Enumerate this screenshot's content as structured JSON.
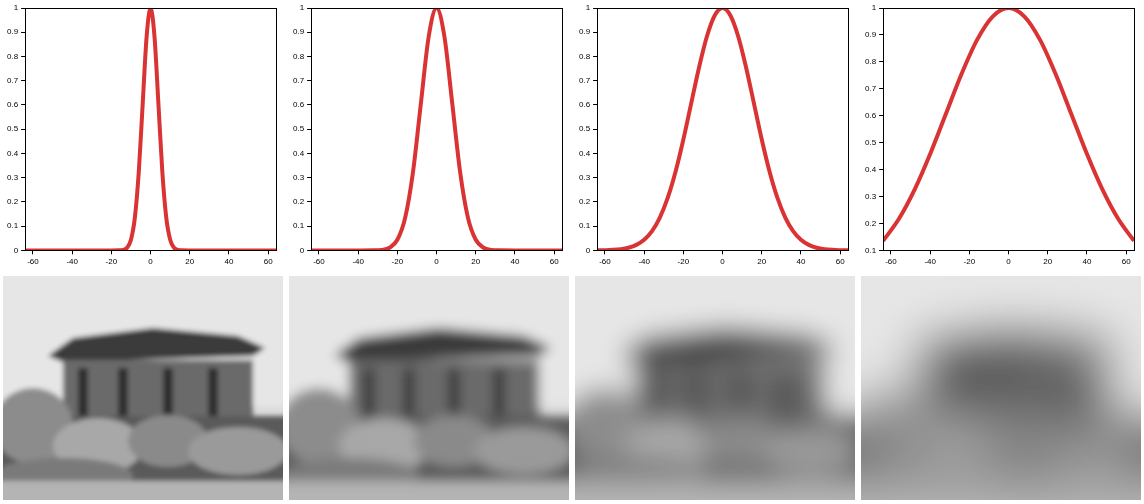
{
  "chart_data": [
    {
      "type": "line",
      "color": "#d93333",
      "grid": false,
      "x": [
        -64,
        -40,
        -20,
        -16,
        -14,
        -12,
        -10,
        -8,
        -6,
        -4,
        -2,
        0,
        2,
        4,
        6,
        8,
        10,
        12,
        14,
        16,
        20,
        40,
        64
      ],
      "values": [
        0,
        0,
        0,
        0.0003,
        0.0022,
        0.0111,
        0.0439,
        0.1353,
        0.3247,
        0.6065,
        0.8825,
        1,
        0.8825,
        0.6065,
        0.3247,
        0.1353,
        0.0439,
        0.0111,
        0.0022,
        0.0003,
        0,
        0,
        0
      ],
      "xlim": [
        -64,
        64
      ],
      "xticks": [
        -60,
        -40,
        -20,
        0,
        20,
        40,
        60
      ],
      "ylim": [
        0,
        1
      ],
      "yticks": [
        0,
        0.1,
        0.2,
        0.3,
        0.4,
        0.5,
        0.6,
        0.7,
        0.8,
        0.9,
        1
      ]
    },
    {
      "type": "line",
      "color": "#d93333",
      "grid": false,
      "x": [
        -64,
        -48,
        -40,
        -32,
        -28,
        -24,
        -20,
        -16,
        -12,
        -8,
        -4,
        0,
        4,
        8,
        12,
        16,
        20,
        24,
        28,
        32,
        40,
        48,
        64
      ],
      "values": [
        0,
        0,
        0,
        0.0003,
        0.0022,
        0.0111,
        0.0439,
        0.1353,
        0.3247,
        0.6065,
        0.8825,
        1,
        0.8825,
        0.6065,
        0.3247,
        0.1353,
        0.0439,
        0.0111,
        0.0022,
        0.0003,
        0,
        0,
        0
      ],
      "xlim": [
        -64,
        64
      ],
      "xticks": [
        -60,
        -40,
        -20,
        0,
        20,
        40,
        60
      ],
      "ylim": [
        0,
        1
      ],
      "yticks": [
        0,
        0.1,
        0.2,
        0.3,
        0.4,
        0.5,
        0.6,
        0.7,
        0.8,
        0.9,
        1
      ]
    },
    {
      "type": "line",
      "color": "#d93333",
      "grid": false,
      "x": [
        -64,
        -60,
        -56,
        -52,
        -48,
        -44,
        -40,
        -36,
        -32,
        -28,
        -24,
        -20,
        -16,
        -12,
        -8,
        -4,
        0,
        4,
        8,
        12,
        16,
        20,
        24,
        28,
        32,
        36,
        40,
        44,
        48,
        52,
        56,
        60,
        64
      ],
      "values": [
        0.0003,
        0.0009,
        0.0022,
        0.0051,
        0.0111,
        0.0228,
        0.0439,
        0.0796,
        0.1353,
        0.2163,
        0.3247,
        0.4578,
        0.6065,
        0.7548,
        0.8825,
        0.9692,
        1,
        0.9692,
        0.8825,
        0.7548,
        0.6065,
        0.4578,
        0.3247,
        0.2163,
        0.1353,
        0.0796,
        0.0439,
        0.0228,
        0.0111,
        0.0051,
        0.0022,
        0.0009,
        0.0003
      ],
      "xlim": [
        -64,
        64
      ],
      "xticks": [
        -60,
        -40,
        -20,
        0,
        20,
        40,
        60
      ],
      "ylim": [
        0,
        1
      ],
      "yticks": [
        0,
        0.1,
        0.2,
        0.3,
        0.4,
        0.5,
        0.6,
        0.7,
        0.8,
        0.9,
        1
      ]
    },
    {
      "type": "line",
      "color": "#d93333",
      "grid": false,
      "x": [
        -64,
        -56,
        -48,
        -40,
        -32,
        -24,
        -16,
        -8,
        0,
        8,
        16,
        24,
        32,
        40,
        48,
        56,
        64
      ],
      "values": [
        0.1353,
        0.2163,
        0.3247,
        0.4578,
        0.6065,
        0.7548,
        0.8825,
        0.9692,
        1,
        0.9692,
        0.8825,
        0.7548,
        0.6065,
        0.4578,
        0.3247,
        0.2163,
        0.1353
      ],
      "xlim": [
        -64,
        64
      ],
      "xticks": [
        -60,
        -40,
        -20,
        0,
        20,
        40,
        60
      ],
      "ylim": [
        0.1,
        1
      ],
      "yticks": [
        0.1,
        0.2,
        0.3,
        0.4,
        0.5,
        0.6,
        0.7,
        0.8,
        0.9,
        1
      ]
    }
  ]
}
